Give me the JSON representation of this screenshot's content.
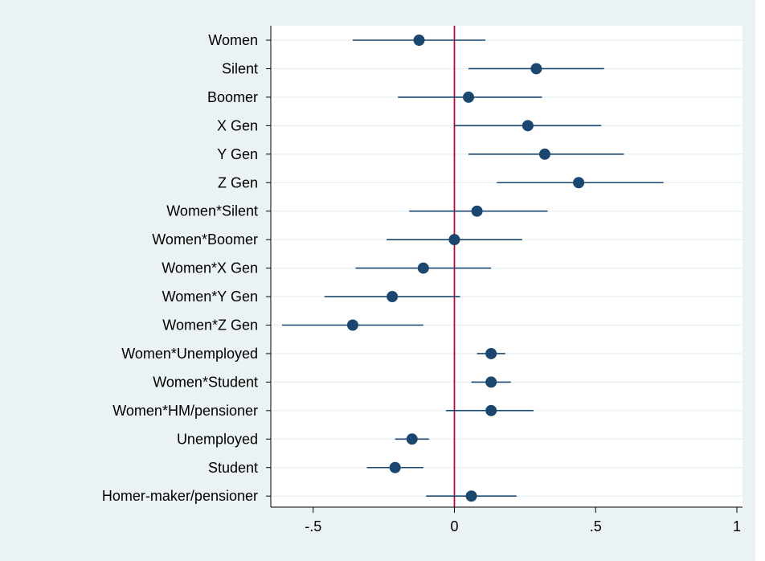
{
  "chart_data": {
    "type": "scatter",
    "subtype": "coefficient-plot",
    "title": "",
    "xlabel": "",
    "ylabel": "",
    "xlim": [
      -0.65,
      1.02
    ],
    "xticks": [
      -0.5,
      0,
      0.5,
      1
    ],
    "xtick_labels": [
      "-.5",
      "0",
      ".5",
      "1"
    ],
    "reference_line": 0,
    "grid": "horizontal",
    "categories": [
      "Women",
      "Silent",
      "Boomer",
      "X Gen",
      "Y Gen",
      "Z Gen",
      "Women*Silent",
      "Women*Boomer",
      "Women*X Gen",
      "Women*Y Gen",
      "Women*Z Gen",
      "Women*Unemployed",
      "Women*Student",
      "Women*HM/pensioner",
      "Unemployed",
      "Student",
      "Homer-maker/pensioner"
    ],
    "estimates": [
      -0.125,
      0.29,
      0.05,
      0.26,
      0.32,
      0.44,
      0.08,
      0.0,
      -0.11,
      -0.22,
      -0.36,
      0.13,
      0.13,
      0.13,
      -0.15,
      -0.21,
      0.06
    ],
    "ci_lower": [
      -0.36,
      0.05,
      -0.2,
      0.0,
      0.05,
      0.15,
      -0.16,
      -0.24,
      -0.35,
      -0.46,
      -0.61,
      0.08,
      0.06,
      -0.03,
      -0.21,
      -0.31,
      -0.1
    ],
    "ci_upper": [
      0.11,
      0.53,
      0.31,
      0.52,
      0.6,
      0.74,
      0.33,
      0.24,
      0.13,
      0.02,
      -0.11,
      0.18,
      0.2,
      0.28,
      -0.09,
      -0.11,
      0.22
    ],
    "colors": {
      "background": "#eaf2f3",
      "plot_area": "#ffffff",
      "grid": "#eaf2f3",
      "marker": "#1a476f",
      "ci_line": "#1a476f",
      "reference_line": "#c10534",
      "axis": "#000000"
    }
  }
}
